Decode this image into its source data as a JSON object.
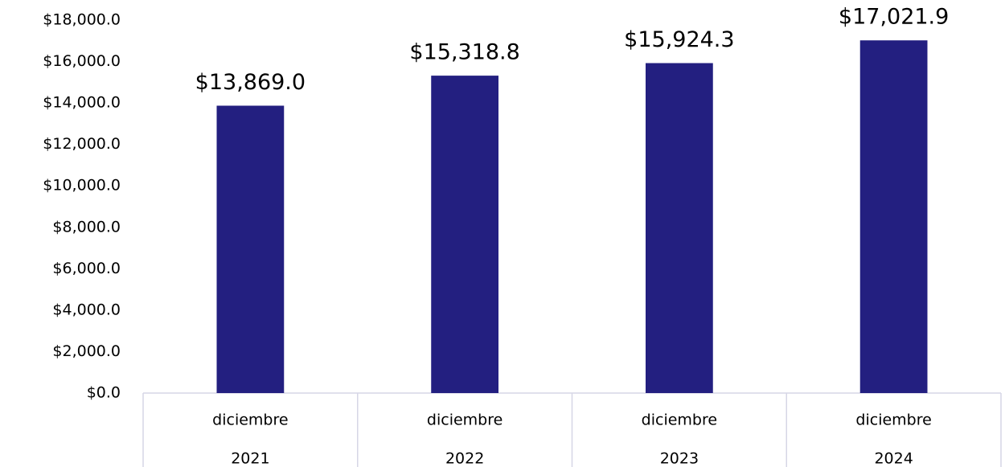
{
  "chart_data": {
    "type": "bar",
    "categories": [
      [
        "diciembre",
        "2021"
      ],
      [
        "diciembre",
        "2022"
      ],
      [
        "diciembre",
        "2023"
      ],
      [
        "diciembre",
        "2024"
      ]
    ],
    "values": [
      13869.0,
      15318.8,
      15924.3,
      17021.9
    ],
    "value_labels": [
      "$13,869.0",
      "$15,318.8",
      "$15,924.3",
      "$17,021.9"
    ],
    "color": "#231f80",
    "ylim": [
      0,
      18000
    ],
    "yticks": [
      {
        "value": 0,
        "label": "$0.0"
      },
      {
        "value": 2000,
        "label": "$2,000.0"
      },
      {
        "value": 4000,
        "label": "$4,000.0"
      },
      {
        "value": 6000,
        "label": "$6,000.0"
      },
      {
        "value": 8000,
        "label": "$8,000.0"
      },
      {
        "value": 10000,
        "label": "$10,000.0"
      },
      {
        "value": 12000,
        "label": "$12,000.0"
      },
      {
        "value": 14000,
        "label": "$14,000.0"
      },
      {
        "value": 16000,
        "label": "$16,000.0"
      },
      {
        "value": 18000,
        "label": "$18,000.0"
      }
    ],
    "grid": false
  }
}
